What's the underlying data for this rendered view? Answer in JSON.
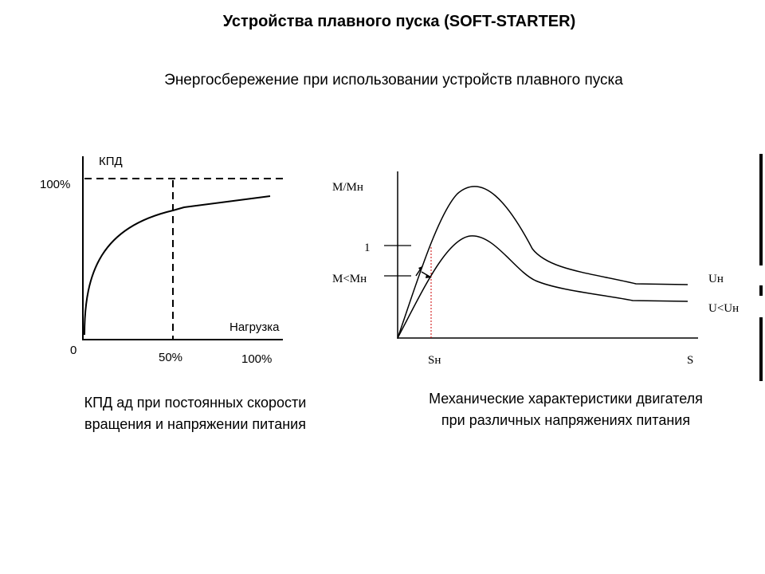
{
  "title": "Устройства плавного пуска (SOFT-STARTER)",
  "subtitle": "Энергосбережение при использовании устройств плавного пуска",
  "left_chart": {
    "y_axis_label": "КПД",
    "y_tick_100": "100%",
    "origin": "0",
    "x_axis_label": "Нагрузка",
    "x_tick_50": "50%",
    "x_tick_100": "100%",
    "caption_line1": "КПД ад при постоянных скорости",
    "caption_line2": "вращения и напряжении питания"
  },
  "right_chart": {
    "y_axis_label": "M/Mн",
    "y_tick_1": "1",
    "y_tick_m": "M<Mн",
    "x_tick_sn": "Sн",
    "x_axis_label": "S",
    "curve_label_un": "Uн",
    "curve_label_u_lt_un": "U<Uн",
    "caption_line1": "Механические характеристики двигателя",
    "caption_line2": "при различных напряжениях питания"
  },
  "colors": {
    "line": "#000000",
    "marker_line": "#cc0000"
  }
}
